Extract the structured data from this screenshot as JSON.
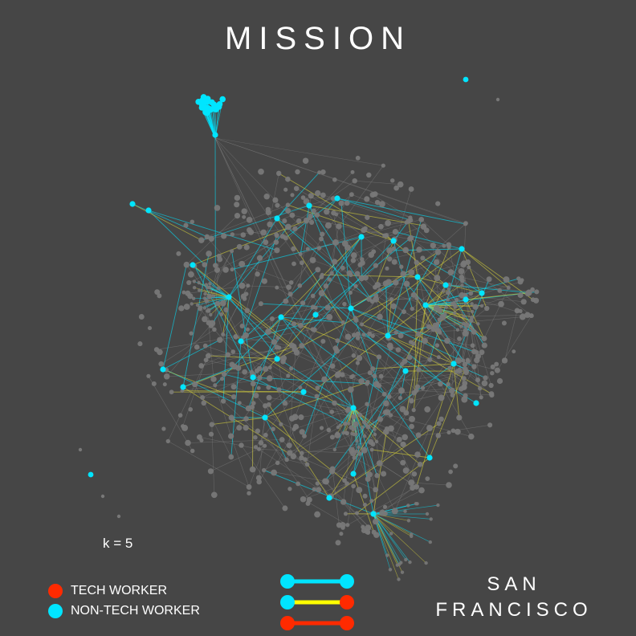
{
  "title": "MISSION",
  "k_label": "k = 5",
  "city": {
    "line1": "SAN",
    "line2": "FRANCISCO"
  },
  "legend": [
    {
      "label": "TECH WORKER",
      "color": "#ff2a00"
    },
    {
      "label": "NON-TECH WORKER",
      "color": "#00e5ff"
    }
  ],
  "edge_legend": [
    {
      "from": "non-tech",
      "to": "non-tech",
      "line_color": "#00e5ff"
    },
    {
      "from": "non-tech",
      "to": "tech",
      "line_color": "#ffff00"
    },
    {
      "from": "tech",
      "to": "tech",
      "line_color": "#ff2a00"
    }
  ],
  "colors": {
    "background": "#464646",
    "tech": "#ff2a00",
    "non_tech": "#00e5ff",
    "mixed_edge": "#d7d23a",
    "minor_node": "#787878",
    "minor_edge": "#8a8a8a"
  }
}
